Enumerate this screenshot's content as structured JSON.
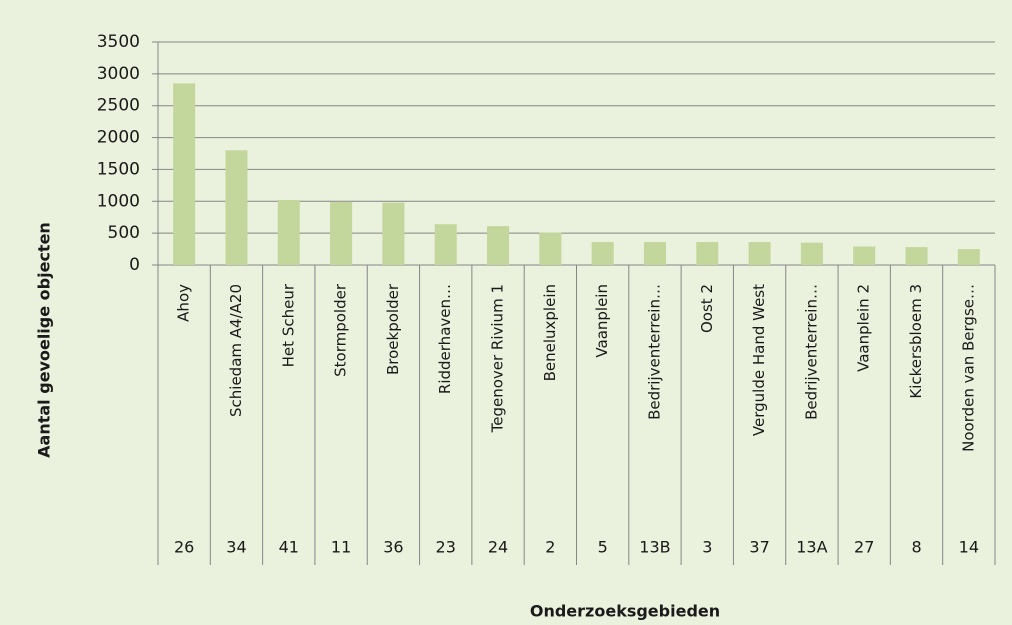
{
  "chart_data": {
    "type": "bar",
    "y_axis_title": "Aantal gevoelige objecten",
    "x_axis_title": "Onderzoeksgebieden",
    "categories": [
      "Ahoy",
      "Schiedam A4/A20",
      "Het Scheur",
      "Stormpolder",
      "Broekpolder",
      "Ridderhaven…",
      "Tegenover Rivium 1",
      "Beneluxplein",
      "Vaanplein",
      "Bedrijventerrein…",
      "Oost 2",
      "Vergulde Hand West",
      "Bedrijventerrein…",
      "Vaanplein 2",
      "Kickersbloem 3",
      "Noorden van Bergse…"
    ],
    "codes": [
      "26",
      "34",
      "41",
      "11",
      "36",
      "23",
      "24",
      "2",
      "5",
      "13B",
      "3",
      "37",
      "13A",
      "27",
      "8",
      "14"
    ],
    "values": [
      2850,
      1800,
      1020,
      990,
      980,
      640,
      610,
      510,
      360,
      360,
      360,
      360,
      350,
      290,
      280,
      250
    ],
    "color": "#c3d69b",
    "ylim": [
      0,
      3500
    ],
    "yticks": [
      0,
      500,
      1000,
      1500,
      2000,
      2500,
      3000,
      3500
    ],
    "grid": true
  }
}
